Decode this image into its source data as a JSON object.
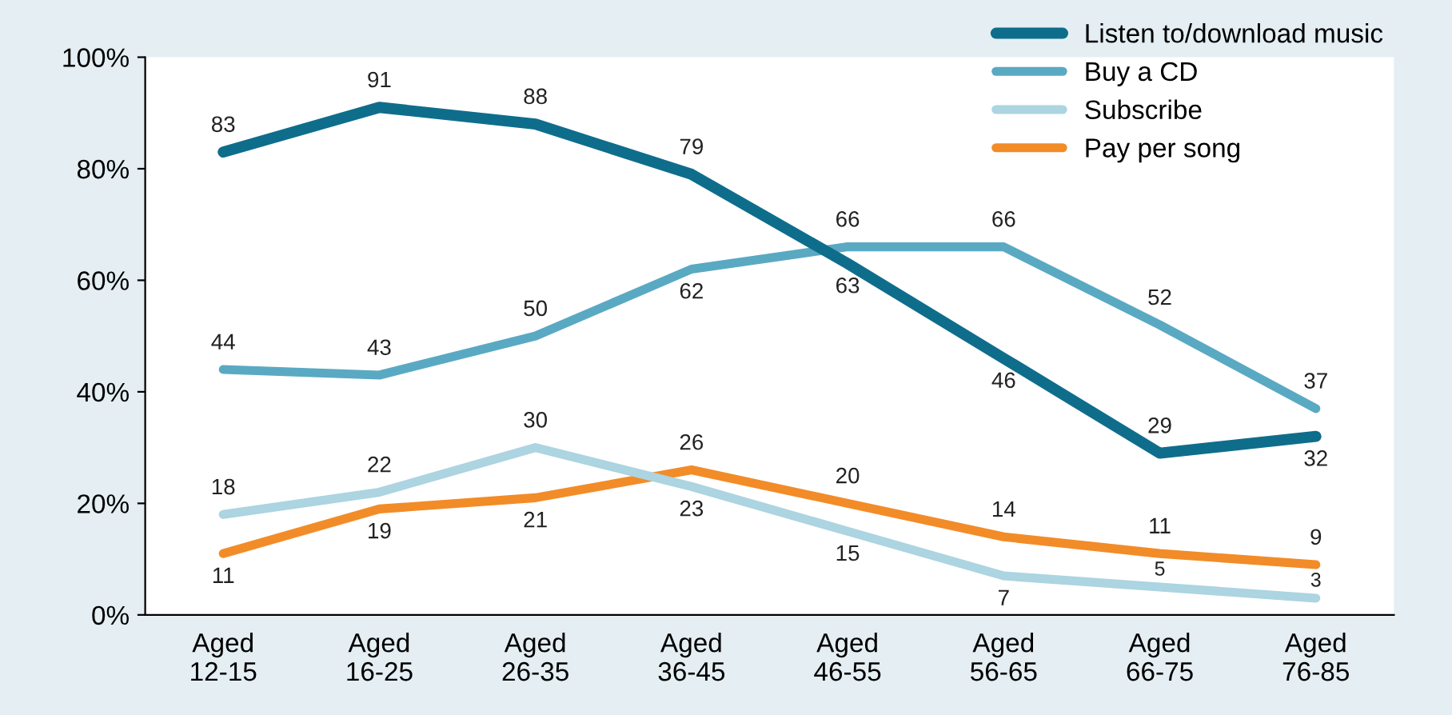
{
  "chart_data": {
    "type": "line",
    "categories": [
      "Aged\n12-15",
      "Aged\n16-25",
      "Aged\n26-35",
      "Aged\n36-45",
      "Aged\n46-55",
      "Aged\n56-65",
      "Aged\n66-75",
      "Aged\n76-85"
    ],
    "series": [
      {
        "name": "Listen to/download music",
        "color": "#0f6d8c",
        "values": [
          83,
          91,
          88,
          79,
          63,
          46,
          29,
          32
        ]
      },
      {
        "name": "Buy a CD",
        "color": "#5aa9c3",
        "values": [
          44,
          43,
          50,
          62,
          66,
          66,
          52,
          37
        ]
      },
      {
        "name": "Subscribe",
        "color": "#acd4e1",
        "values": [
          18,
          22,
          30,
          23,
          15,
          7,
          5,
          3
        ]
      },
      {
        "name": "Pay per song",
        "color": "#f28c28",
        "values": [
          11,
          19,
          21,
          26,
          20,
          14,
          11,
          9
        ]
      }
    ],
    "ylim": [
      0,
      100
    ],
    "yticks": [
      {
        "value": 0,
        "label": "0%"
      },
      {
        "value": 20,
        "label": "20%"
      },
      {
        "value": 40,
        "label": "40%"
      },
      {
        "value": 60,
        "label": "60%"
      },
      {
        "value": 80,
        "label": "80%"
      },
      {
        "value": 100,
        "label": "100%"
      }
    ],
    "data_labels": true,
    "legend": "top right",
    "grid": false,
    "marker": "none",
    "line_style": "solid"
  }
}
